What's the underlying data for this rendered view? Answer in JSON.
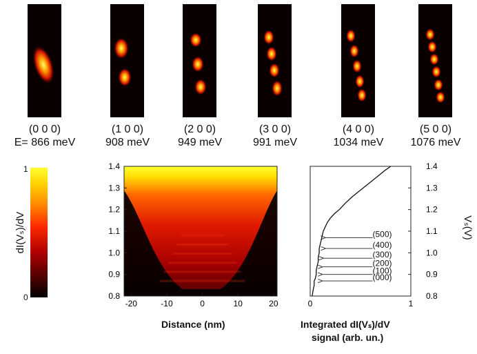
{
  "modes": [
    {
      "index": "(0 0 0)",
      "energy": "866 meV",
      "energy_prefix": "E= "
    },
    {
      "index": "(1 0 0)",
      "energy": "908 meV",
      "energy_prefix": ""
    },
    {
      "index": "(2 0 0)",
      "energy": "949 meV",
      "energy_prefix": ""
    },
    {
      "index": "(3 0 0)",
      "energy": "991 meV",
      "energy_prefix": ""
    },
    {
      "index": "(4 0 0)",
      "energy": "1034 meV",
      "energy_prefix": ""
    },
    {
      "index": "(5 0 0)",
      "energy": "1076 meV",
      "energy_prefix": ""
    }
  ],
  "colorbar": {
    "label": "dI(Vₛ)/dV",
    "max_label": "1",
    "min_label": "0",
    "colors": [
      "#000000",
      "#5a0000",
      "#b00000",
      "#ff2a00",
      "#ff8c00",
      "#ffd400",
      "#ffff33"
    ]
  },
  "chart_data": [
    {
      "type": "heatmap",
      "title": "",
      "xlabel": "Distance (nm)",
      "ylabel": "",
      "xlim": [
        -22,
        21
      ],
      "ylim": [
        0.8,
        1.4
      ],
      "xticks": [
        "-20",
        "-10",
        "0",
        "10",
        "20"
      ],
      "yticks": [
        "0.8",
        "0.9",
        "1.0",
        "1.1",
        "1.2",
        "1.3",
        "1.4"
      ]
    },
    {
      "type": "line",
      "title": "",
      "xlabel_line1": "Integrated dI(Vₛ)/dV",
      "xlabel_line2": "signal (arb. un.)",
      "ylabel": "Vₛ(V)",
      "xlim": [
        0,
        1
      ],
      "ylim": [
        0.8,
        1.4
      ],
      "xticks": [
        "0",
        "1"
      ],
      "yticks": [
        "0.8",
        "0.9",
        "1.0",
        "1.1",
        "1.2",
        "1.3",
        "1.4"
      ],
      "series": [
        {
          "x": [
            0.02,
            0.03,
            0.04,
            0.04,
            0.05,
            0.06,
            0.06,
            0.07,
            0.08,
            0.08,
            0.09,
            0.09,
            0.1,
            0.11,
            0.12,
            0.13,
            0.15,
            0.17,
            0.2,
            0.24,
            0.29,
            0.35,
            0.42,
            0.5,
            0.58,
            0.66,
            0.74,
            0.8
          ],
          "y": [
            0.8,
            0.83,
            0.85,
            0.87,
            0.88,
            0.9,
            0.92,
            0.94,
            0.96,
            0.98,
            1.0,
            1.02,
            1.04,
            1.06,
            1.08,
            1.1,
            1.12,
            1.14,
            1.16,
            1.18,
            1.2,
            1.23,
            1.26,
            1.29,
            1.32,
            1.35,
            1.38,
            1.4
          ]
        }
      ],
      "annotations": [
        {
          "text": "(500)",
          "y": 1.07,
          "x_tip": 0.14
        },
        {
          "text": "(400)",
          "y": 1.02,
          "x_tip": 0.14
        },
        {
          "text": "(300)",
          "y": 0.975,
          "x_tip": 0.12
        },
        {
          "text": "(200)",
          "y": 0.935,
          "x_tip": 0.11
        },
        {
          "text": "(100)",
          "y": 0.9,
          "x_tip": 0.11
        },
        {
          "text": "(000)",
          "y": 0.87,
          "x_tip": 0.11
        }
      ]
    }
  ]
}
